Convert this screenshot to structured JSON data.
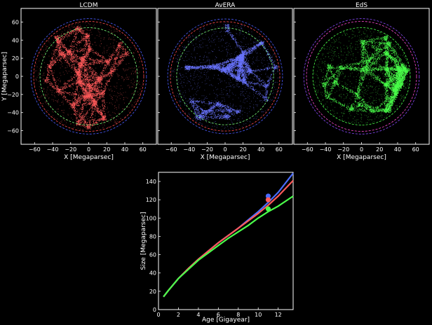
{
  "panels": {
    "x_ticks": [
      "−60",
      "−40",
      "−20",
      "0",
      "20",
      "40",
      "60"
    ],
    "y_ticks": [
      "60",
      "40",
      "20",
      "0",
      "−20",
      "−40",
      "−60"
    ]
  },
  "chart_data": [
    {
      "type": "scatter",
      "title": "LCDM",
      "xlabel": "X [Megaparsec]",
      "ylabel": "Y [Megaparsec]",
      "xlim": [
        -75,
        75
      ],
      "ylim": [
        -75,
        75
      ],
      "point_color": "#ff5a5a",
      "outer_circles": [
        {
          "radius": 64,
          "color": "#4a5cff"
        },
        {
          "radius": 61,
          "color": "#ff4a4a"
        }
      ],
      "inner_circle": {
        "radius": 54,
        "color": "#7cff7c"
      }
    },
    {
      "type": "scatter",
      "title": "AvERA",
      "xlabel": "X [Megaparsec]",
      "ylabel": "",
      "xlim": [
        -75,
        75
      ],
      "ylim": [
        -75,
        75
      ],
      "point_color": "#6a74ff",
      "outer_circles": [
        {
          "radius": 64,
          "color": "#4a5cff"
        },
        {
          "radius": 61,
          "color": "#ff4a4a"
        }
      ],
      "inner_circle": {
        "radius": 54,
        "color": "#7cff7c"
      }
    },
    {
      "type": "scatter",
      "title": "EdS",
      "xlabel": "X [Megaparsec]",
      "ylabel": "",
      "xlim": [
        -75,
        75
      ],
      "ylim": [
        -75,
        75
      ],
      "point_color": "#4aff4a",
      "outer_circles": [
        {
          "radius": 64,
          "color": "#8a4aff"
        },
        {
          "radius": 61,
          "color": "#ff4ad2"
        }
      ],
      "inner_circle": {
        "radius": 54,
        "color": "#4aff4a"
      }
    },
    {
      "type": "line",
      "title": "",
      "xlabel": "Age [Gigayear]",
      "ylabel": "Size [Megaparsec]",
      "xlim": [
        0,
        13.5
      ],
      "ylim": [
        0,
        150
      ],
      "x_ticks": [
        0,
        2,
        4,
        6,
        8,
        10,
        12
      ],
      "y_ticks": [
        0,
        20,
        40,
        60,
        80,
        100,
        120,
        140
      ],
      "grid": false,
      "x": [
        0.5,
        1,
        2,
        3,
        4,
        5,
        6,
        7,
        8,
        9,
        10,
        11,
        12,
        13.5
      ],
      "series": [
        {
          "color": "#4a6cff",
          "values": [
            14,
            21,
            34,
            45,
            55,
            64,
            73,
            81,
            89,
            98,
            107,
            117,
            128,
            149
          ]
        },
        {
          "color": "#ff5a5a",
          "values": [
            14,
            21,
            34,
            45,
            55,
            64,
            73,
            81,
            89,
            97,
            105,
            114,
            124,
            141
          ]
        },
        {
          "color": "#4aff4a",
          "values": [
            14,
            21,
            34,
            44,
            54,
            62,
            70,
            78,
            85,
            92,
            100,
            107,
            113,
            124
          ]
        }
      ],
      "markers": [
        {
          "x": 11.0,
          "y": 124,
          "color": "#4a6cff"
        },
        {
          "x": 11.0,
          "y": 120,
          "color": "#ff5a5a"
        },
        {
          "x": 11.0,
          "y": 110,
          "color": "#4aff4a"
        }
      ]
    }
  ]
}
